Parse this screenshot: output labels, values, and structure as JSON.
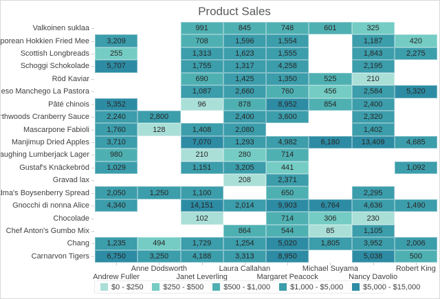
{
  "chart_data": {
    "type": "heatmap",
    "title": "Product Sales",
    "legend_position": "bottom",
    "columns": [
      "Andrew Fuller",
      "Anne Dodsworth",
      "Janet Leverling",
      "Laura Callahan",
      "Margaret Peacock",
      "Michael Suyama",
      "Nancy Davolio",
      "Robert King"
    ],
    "rows": [
      "Valkoinen suklaa",
      "Singaporean Hokkien Fried Mee",
      "Scottish Longbreads",
      "Schoggi Schokolade",
      "Röd Kaviar",
      "Queso Manchego La Pastora",
      "Pâté chinois",
      "Northwoods Cranberry Sauce",
      "Mascarpone Fabioli",
      "Manjimup Dried Apples",
      "Laughing Lumberjack Lager",
      "Gustaf's Knäckebröd",
      "Gravad lax",
      "Grandma's Boysenberry Spread",
      "Gnocchi di nonna Alice",
      "Chocolade",
      "Chef Anton's Gumbo Mix",
      "Chang",
      "Carnarvon Tigers"
    ],
    "values": [
      [
        null,
        null,
        991,
        845,
        748,
        601,
        325,
        null
      ],
      [
        3209,
        null,
        708,
        1596,
        1554,
        null,
        1187,
        420
      ],
      [
        255,
        null,
        1313,
        1623,
        1555,
        null,
        1843,
        2275
      ],
      [
        5707,
        null,
        1755,
        1317,
        4258,
        null,
        2195,
        null
      ],
      [
        null,
        null,
        690,
        1425,
        1350,
        525,
        210,
        null
      ],
      [
        null,
        null,
        1087,
        2660,
        760,
        456,
        2584,
        5320
      ],
      [
        5352,
        null,
        96,
        878,
        8952,
        854,
        2400,
        null
      ],
      [
        2240,
        2800,
        null,
        2400,
        3600,
        null,
        2320,
        null
      ],
      [
        1760,
        128,
        1408,
        2080,
        null,
        null,
        1402,
        null
      ],
      [
        3710,
        null,
        7070,
        1293,
        4982,
        6180,
        13409,
        4685
      ],
      [
        980,
        null,
        210,
        280,
        714,
        null,
        null,
        null
      ],
      [
        1029,
        null,
        1151,
        3205,
        441,
        null,
        null,
        1092
      ],
      [
        null,
        null,
        null,
        208,
        2371,
        null,
        null,
        null
      ],
      [
        2050,
        1250,
        1100,
        null,
        650,
        null,
        2295,
        null
      ],
      [
        4340,
        null,
        14151,
        2014,
        9903,
        6764,
        4636,
        1490
      ],
      [
        null,
        null,
        102,
        null,
        714,
        306,
        230,
        null
      ],
      [
        null,
        null,
        null,
        864,
        544,
        85,
        1105,
        null
      ],
      [
        1235,
        494,
        1729,
        1254,
        5020,
        1805,
        3952,
        2006
      ],
      [
        6750,
        3250,
        4188,
        3313,
        8950,
        null,
        5038,
        500
      ]
    ],
    "legend": [
      {
        "label": "$0 - $250",
        "color": "#aadfd8",
        "min": 0,
        "max": 250
      },
      {
        "label": "$250 - $500",
        "color": "#74ccc4",
        "min": 250,
        "max": 500
      },
      {
        "label": "$500 - $1,000",
        "color": "#4fb0b2",
        "min": 500,
        "max": 1000
      },
      {
        "label": "$1,000 - $5,000",
        "color": "#3c9dab",
        "min": 1000,
        "max": 5000
      },
      {
        "label": "$5,000 - $15,000",
        "color": "#2d8ca4",
        "min": 5000,
        "max": 15000
      }
    ],
    "title_color": "#58595b",
    "label_color": "#3f3f41",
    "value_color": "#262626"
  }
}
